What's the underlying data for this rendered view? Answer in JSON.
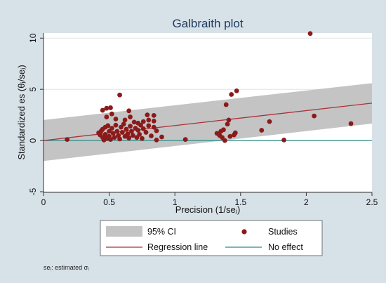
{
  "chart_data": {
    "type": "scatter",
    "title": "Galbraith plot",
    "xlabel": "Precision (1/seⱼ)",
    "ylabel": "Standardized es  (θⱼ/seⱼ)",
    "xlim": [
      0,
      2.5
    ],
    "ylim": [
      -5,
      10.5
    ],
    "x_ticks": [
      "0",
      "0.5",
      "1",
      "1.5",
      "2",
      "2.5"
    ],
    "y_ticks": [
      "-5",
      "0",
      "5",
      "10"
    ],
    "x_tick_values": [
      0,
      0.5,
      1,
      1.5,
      2,
      2.5
    ],
    "y_tick_values": [
      -5,
      0,
      5,
      10
    ],
    "grid": "horizontal",
    "legend_placement": "bottom",
    "footnote": "seⱼ: estimated σⱼ",
    "colors": {
      "page_background": "#d7e1e8",
      "plot_background": "#ffffff",
      "title": "#1e3c60",
      "ci_band": "#c4c4c4",
      "studies": "#8b1a1a",
      "regression_line": "#a8323a",
      "no_effect": "#2e8b8b",
      "grid": "#e3e3e3"
    },
    "ci_band": {
      "label": "95% CI",
      "lower": [
        [
          0,
          -2
        ],
        [
          2.5,
          1.65
        ]
      ],
      "upper": [
        [
          0,
          2
        ],
        [
          2.5,
          5.6
        ]
      ]
    },
    "regression_line": {
      "label": "Regression line",
      "points": [
        [
          0,
          0
        ],
        [
          2.5,
          3.65
        ]
      ]
    },
    "no_effect_line": {
      "label": "No effect",
      "y": 0
    },
    "series": [
      {
        "name": "Studies",
        "points": [
          [
            0.18,
            0.1
          ],
          [
            0.42,
            0.75
          ],
          [
            0.43,
            0.55
          ],
          [
            0.44,
            0.95
          ],
          [
            0.45,
            1.1
          ],
          [
            0.45,
            0.3
          ],
          [
            0.46,
            0.05
          ],
          [
            0.47,
            1.3
          ],
          [
            0.47,
            0.6
          ],
          [
            0.48,
            0.2
          ],
          [
            0.49,
            1.45
          ],
          [
            0.5,
            0.9
          ],
          [
            0.5,
            0.4
          ],
          [
            0.51,
            0.1
          ],
          [
            0.52,
            1.2
          ],
          [
            0.53,
            0.7
          ],
          [
            0.54,
            0.3
          ],
          [
            0.55,
            1.5
          ],
          [
            0.56,
            0.9
          ],
          [
            0.57,
            0.5
          ],
          [
            0.58,
            0.15
          ],
          [
            0.59,
            1.3
          ],
          [
            0.6,
            0.8
          ],
          [
            0.61,
            1.6
          ],
          [
            0.62,
            0.4
          ],
          [
            0.63,
            1.1
          ],
          [
            0.64,
            0.65
          ],
          [
            0.65,
            0.25
          ],
          [
            0.66,
            1.4
          ],
          [
            0.67,
            0.9
          ],
          [
            0.68,
            0.5
          ],
          [
            0.69,
            1.8
          ],
          [
            0.7,
            1.2
          ],
          [
            0.71,
            0.3
          ],
          [
            0.72,
            1.0
          ],
          [
            0.73,
            0.6
          ],
          [
            0.74,
            1.5
          ],
          [
            0.75,
            0.2
          ],
          [
            0.76,
            1.15
          ],
          [
            0.78,
            0.8
          ],
          [
            0.8,
            1.45
          ],
          [
            0.82,
            0.45
          ],
          [
            0.84,
            1.9
          ],
          [
            0.86,
            0.95
          ],
          [
            0.9,
            0.35
          ],
          [
            0.48,
            2.3
          ],
          [
            0.52,
            2.6
          ],
          [
            0.55,
            2.1
          ],
          [
            0.62,
            2.0
          ],
          [
            0.66,
            2.3
          ],
          [
            0.72,
            1.7
          ],
          [
            0.76,
            1.85
          ],
          [
            0.8,
            2.0
          ],
          [
            0.84,
            1.3
          ],
          [
            0.86,
            0.05
          ],
          [
            0.45,
            2.95
          ],
          [
            0.48,
            3.15
          ],
          [
            0.51,
            3.2
          ],
          [
            0.58,
            4.45
          ],
          [
            0.65,
            2.9
          ],
          [
            0.79,
            2.5
          ],
          [
            0.84,
            2.45
          ],
          [
            1.08,
            0.1
          ],
          [
            1.32,
            0.7
          ],
          [
            1.34,
            0.5
          ],
          [
            1.35,
            0.9
          ],
          [
            1.36,
            0.3
          ],
          [
            1.37,
            1.05
          ],
          [
            1.38,
            0.0
          ],
          [
            1.4,
            1.6
          ],
          [
            1.41,
            2.0
          ],
          [
            1.42,
            0.4
          ],
          [
            1.45,
            0.55
          ],
          [
            1.46,
            0.75
          ],
          [
            1.39,
            3.5
          ],
          [
            1.43,
            4.5
          ],
          [
            1.47,
            4.85
          ],
          [
            1.66,
            1.0
          ],
          [
            1.72,
            1.85
          ],
          [
            1.83,
            0.05
          ],
          [
            2.03,
            10.45
          ],
          [
            2.06,
            2.4
          ],
          [
            2.34,
            1.65
          ]
        ]
      }
    ]
  }
}
